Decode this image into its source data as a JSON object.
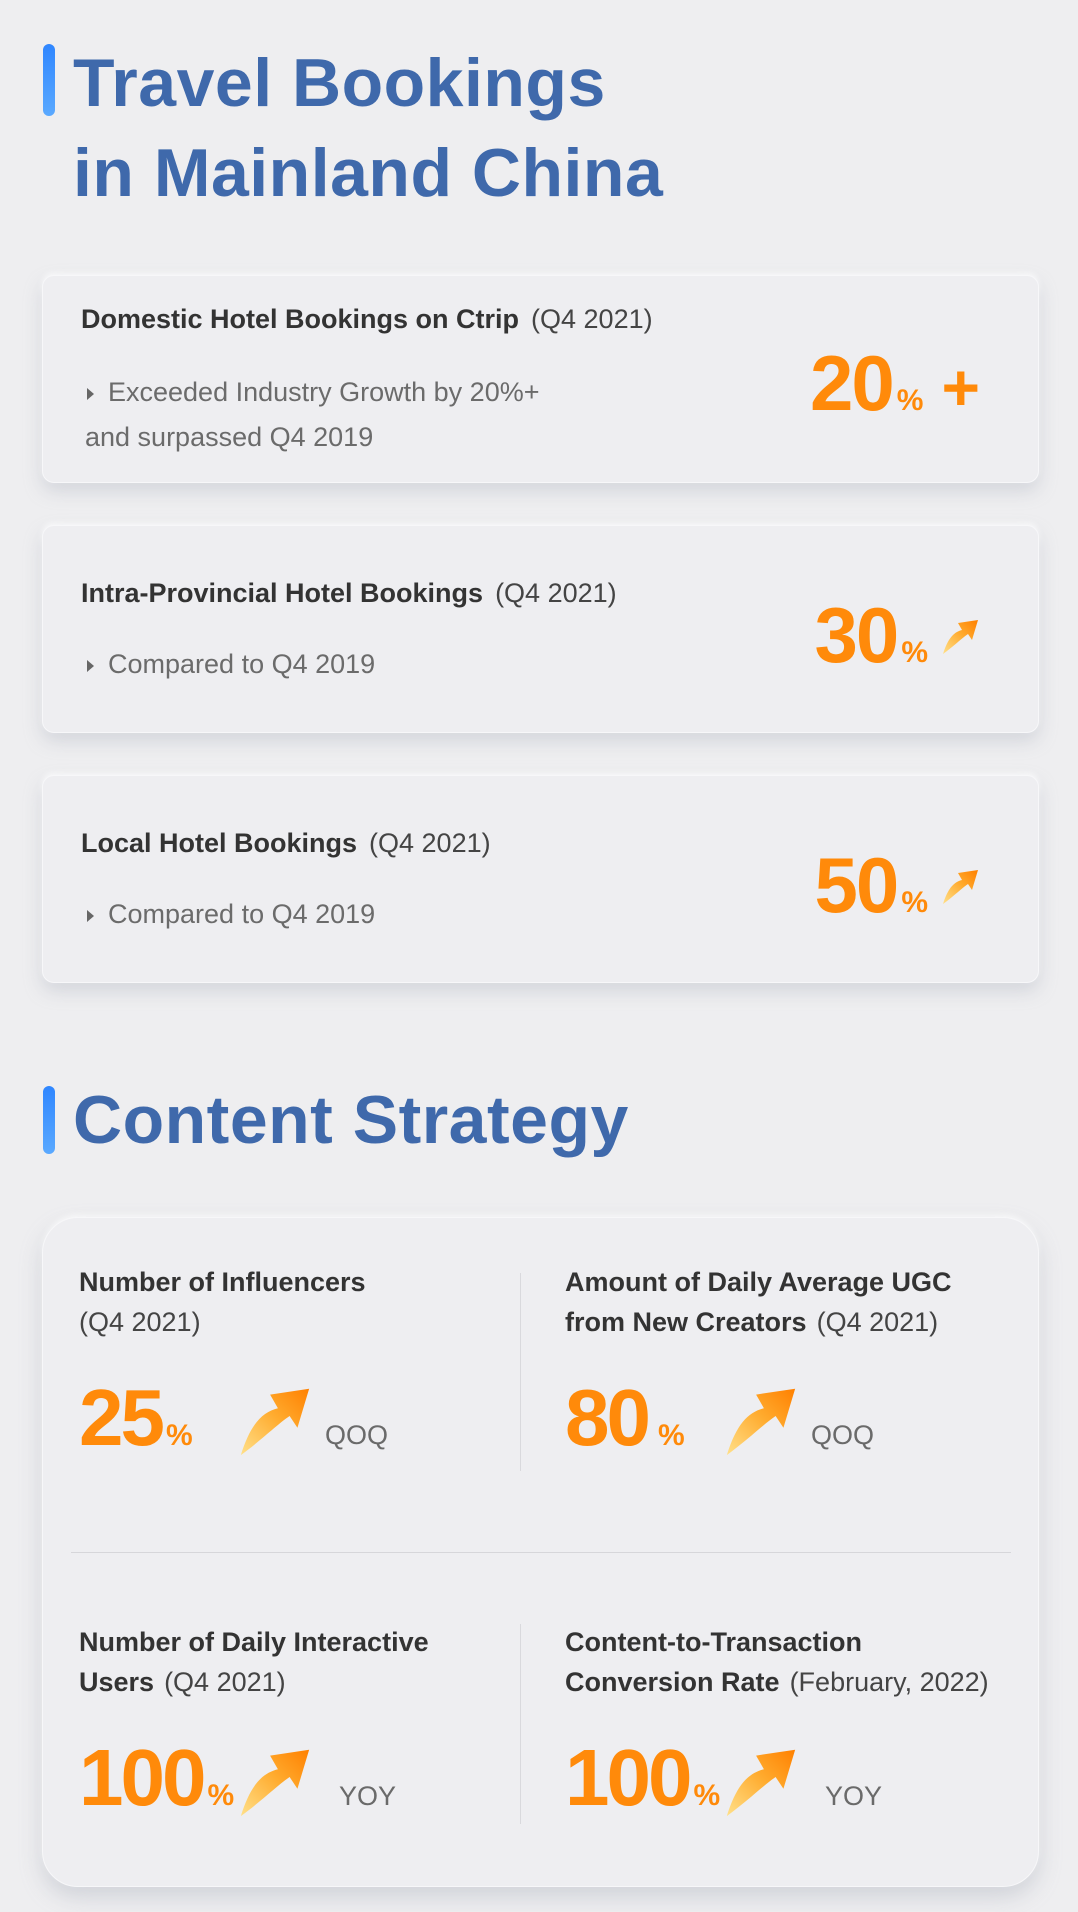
{
  "section1": {
    "title_line1": "Travel Bookings",
    "title_line2": "in Mainland China"
  },
  "cards": [
    {
      "title": "Domestic Hotel Bookings on Ctrip",
      "period": "(Q4 2021)",
      "bullet_line1": "Exceeded Industry Growth by 20%+",
      "bullet_line2": "and surpassed Q4 2019",
      "value": "20",
      "unit": "%",
      "suffix": "+"
    },
    {
      "title": "Intra-Provincial Hotel Bookings",
      "period": "(Q4 2021)",
      "bullet_line1": "Compared to Q4 2019",
      "value": "30",
      "unit": "%",
      "icon": "up-arrow-icon"
    },
    {
      "title": "Local Hotel Bookings",
      "period": "(Q4 2021)",
      "bullet_line1": "Compared to Q4 2019",
      "value": "50",
      "unit": "%",
      "icon": "up-arrow-icon"
    }
  ],
  "section2": {
    "title": "Content Strategy"
  },
  "metrics": [
    {
      "title_line1": "Number of Influencers",
      "title_line2": "",
      "period": "(Q4 2021)",
      "value": "25",
      "unit": "%",
      "compare": "QOQ"
    },
    {
      "title_line1": "Amount of Daily Average UGC",
      "title_line2": "from New Creators",
      "period": "(Q4 2021)",
      "value": "80",
      "unit": "%",
      "compare": "QOQ"
    },
    {
      "title_line1": "Number of Daily Interactive",
      "title_line2": "Users",
      "period": "(Q4 2021)",
      "value": "100",
      "unit": "%",
      "compare": "YOY"
    },
    {
      "title_line1": "Content-to-Transaction",
      "title_line2": "Conversion Rate",
      "period": "(February, 2022)",
      "value": "100",
      "unit": "%",
      "compare": "YOY"
    }
  ],
  "colors": {
    "accent_orange": "#ff8a0a",
    "title_blue": "#3f69ab",
    "bar_blue": "#2f86ff"
  }
}
